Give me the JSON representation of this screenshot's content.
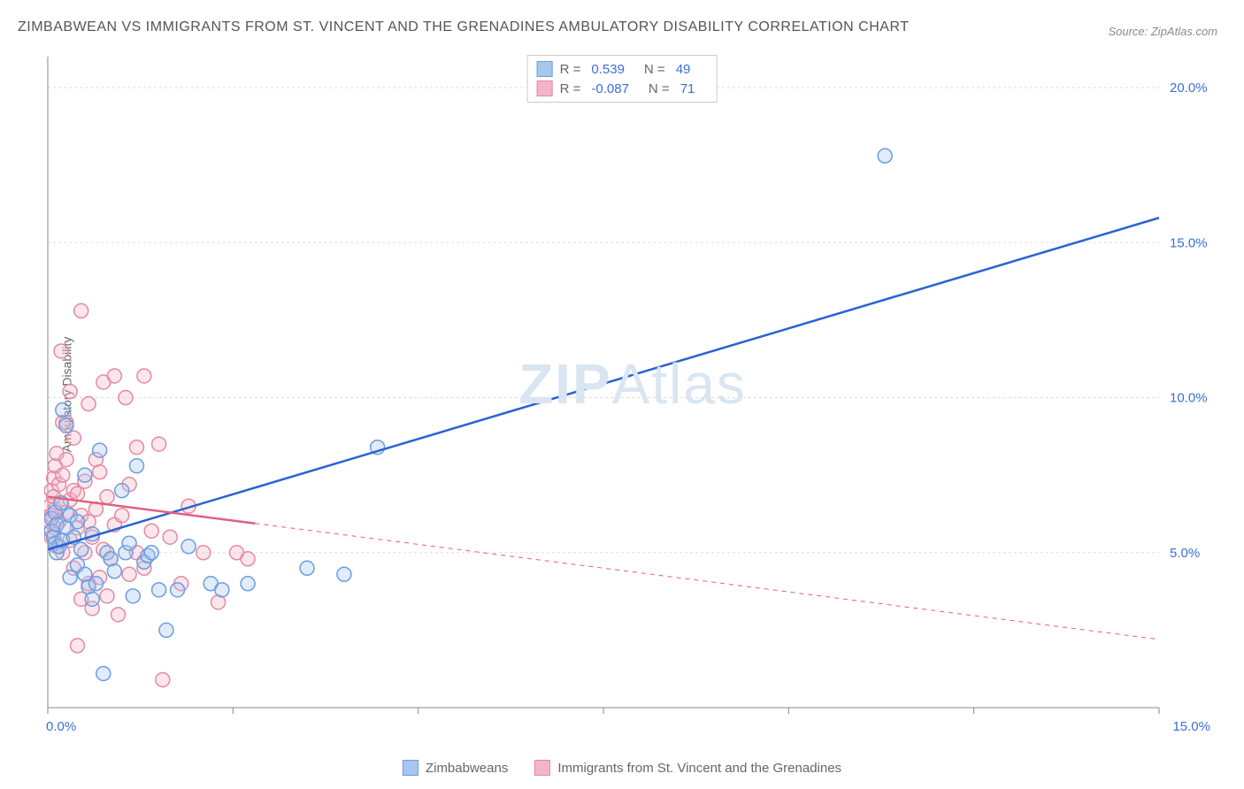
{
  "chart": {
    "type": "scatter",
    "title": "ZIMBABWEAN VS IMMIGRANTS FROM ST. VINCENT AND THE GRENADINES AMBULATORY DISABILITY CORRELATION CHART",
    "source": "Source: ZipAtlas.com",
    "watermark": "ZIPAtlas",
    "y_axis_label": "Ambulatory Disability",
    "background_color": "#ffffff",
    "grid_color": "#dddddd",
    "axis_color": "#888888",
    "tick_color": "#888888",
    "x_range": [
      0,
      15
    ],
    "y_range": [
      0,
      21
    ],
    "x_ticks": [
      0,
      2.5,
      5,
      7.5,
      10,
      12.5,
      15
    ],
    "x_tick_labels": {
      "0": "0.0%",
      "15": "15.0%"
    },
    "y_ticks": [
      5,
      10,
      15,
      20
    ],
    "y_tick_labels": {
      "5": "5.0%",
      "10": "10.0%",
      "15": "15.0%",
      "20": "20.0%"
    },
    "tick_label_color": "#3b6fd6",
    "tick_label_fontsize": 15,
    "marker_radius": 8,
    "marker_stroke_width": 1.5,
    "marker_fill_opacity": 0.35,
    "series": [
      {
        "name": "Zimbabweans",
        "color_stroke": "#6a9de0",
        "color_fill": "#a8c7ee",
        "regression": {
          "x1": 0,
          "y1": 5.1,
          "x2": 15,
          "y2": 15.8,
          "solid_until_x": 15,
          "stroke": "#2a62d4",
          "stroke_width": 2.5
        },
        "R": "0.539",
        "N": "49",
        "points": [
          [
            0.05,
            6.1
          ],
          [
            0.05,
            5.7
          ],
          [
            0.08,
            5.5
          ],
          [
            0.1,
            5.3
          ],
          [
            0.1,
            6.3
          ],
          [
            0.12,
            5.0
          ],
          [
            0.12,
            5.9
          ],
          [
            0.15,
            5.2
          ],
          [
            0.18,
            6.6
          ],
          [
            0.2,
            5.4
          ],
          [
            0.2,
            9.6
          ],
          [
            0.25,
            9.1
          ],
          [
            0.25,
            5.8
          ],
          [
            0.3,
            6.2
          ],
          [
            0.3,
            4.2
          ],
          [
            0.35,
            5.5
          ],
          [
            0.4,
            6.0
          ],
          [
            0.4,
            4.6
          ],
          [
            0.45,
            5.1
          ],
          [
            0.5,
            4.3
          ],
          [
            0.5,
            7.5
          ],
          [
            0.55,
            3.9
          ],
          [
            0.6,
            5.6
          ],
          [
            0.65,
            4.0
          ],
          [
            0.7,
            8.3
          ],
          [
            0.75,
            1.1
          ],
          [
            0.8,
            5.0
          ],
          [
            0.85,
            4.8
          ],
          [
            0.9,
            4.4
          ],
          [
            1.0,
            7.0
          ],
          [
            1.05,
            5.0
          ],
          [
            1.1,
            5.3
          ],
          [
            1.15,
            3.6
          ],
          [
            1.2,
            7.8
          ],
          [
            1.3,
            4.7
          ],
          [
            1.35,
            4.9
          ],
          [
            1.4,
            5.0
          ],
          [
            1.5,
            3.8
          ],
          [
            1.6,
            2.5
          ],
          [
            1.75,
            3.8
          ],
          [
            1.9,
            5.2
          ],
          [
            2.2,
            4.0
          ],
          [
            2.35,
            3.8
          ],
          [
            2.7,
            4.0
          ],
          [
            3.5,
            4.5
          ],
          [
            4.0,
            4.3
          ],
          [
            4.45,
            8.4
          ],
          [
            11.3,
            17.8
          ],
          [
            0.6,
            3.5
          ]
        ]
      },
      {
        "name": "Immigrants from St. Vincent and the Grenadines",
        "color_stroke": "#e589a4",
        "color_fill": "#f2b6c6",
        "regression": {
          "x1": 0,
          "y1": 6.8,
          "x2": 15,
          "y2": 2.2,
          "solid_until_x": 2.8,
          "stroke": "#e1607f",
          "stroke_width": 2.5
        },
        "R": "-0.087",
        "N": "71",
        "points": [
          [
            0.03,
            6.0
          ],
          [
            0.03,
            6.5
          ],
          [
            0.05,
            7.0
          ],
          [
            0.05,
            6.2
          ],
          [
            0.05,
            5.5
          ],
          [
            0.08,
            6.8
          ],
          [
            0.08,
            7.4
          ],
          [
            0.1,
            5.8
          ],
          [
            0.1,
            6.4
          ],
          [
            0.1,
            7.8
          ],
          [
            0.12,
            8.2
          ],
          [
            0.12,
            5.2
          ],
          [
            0.15,
            6.0
          ],
          [
            0.15,
            7.2
          ],
          [
            0.18,
            6.6
          ],
          [
            0.18,
            11.5
          ],
          [
            0.2,
            5.0
          ],
          [
            0.2,
            7.5
          ],
          [
            0.2,
            9.2
          ],
          [
            0.25,
            6.3
          ],
          [
            0.25,
            8.0
          ],
          [
            0.25,
            9.2
          ],
          [
            0.3,
            5.4
          ],
          [
            0.3,
            6.7
          ],
          [
            0.3,
            10.2
          ],
          [
            0.35,
            4.5
          ],
          [
            0.35,
            7.0
          ],
          [
            0.35,
            8.7
          ],
          [
            0.4,
            2.0
          ],
          [
            0.4,
            5.8
          ],
          [
            0.4,
            6.9
          ],
          [
            0.45,
            3.5
          ],
          [
            0.45,
            6.2
          ],
          [
            0.45,
            12.8
          ],
          [
            0.5,
            5.0
          ],
          [
            0.5,
            7.3
          ],
          [
            0.55,
            4.0
          ],
          [
            0.55,
            6.0
          ],
          [
            0.55,
            9.8
          ],
          [
            0.6,
            3.2
          ],
          [
            0.6,
            5.5
          ],
          [
            0.65,
            6.4
          ],
          [
            0.65,
            8.0
          ],
          [
            0.7,
            4.2
          ],
          [
            0.7,
            7.6
          ],
          [
            0.75,
            5.1
          ],
          [
            0.75,
            10.5
          ],
          [
            0.8,
            3.6
          ],
          [
            0.8,
            6.8
          ],
          [
            0.85,
            4.8
          ],
          [
            0.9,
            5.9
          ],
          [
            0.9,
            10.7
          ],
          [
            0.95,
            3.0
          ],
          [
            1.0,
            6.2
          ],
          [
            1.05,
            10.0
          ],
          [
            1.1,
            4.3
          ],
          [
            1.1,
            7.2
          ],
          [
            1.2,
            5.0
          ],
          [
            1.2,
            8.4
          ],
          [
            1.3,
            4.5
          ],
          [
            1.3,
            10.7
          ],
          [
            1.4,
            5.7
          ],
          [
            1.5,
            8.5
          ],
          [
            1.55,
            0.9
          ],
          [
            1.65,
            5.5
          ],
          [
            1.8,
            4.0
          ],
          [
            1.9,
            6.5
          ],
          [
            2.1,
            5.0
          ],
          [
            2.3,
            3.4
          ],
          [
            2.55,
            5.0
          ],
          [
            2.7,
            4.8
          ]
        ]
      }
    ],
    "legend_top": [
      {
        "swatch_fill": "#a8c7ee",
        "swatch_stroke": "#6a9de0",
        "R_label": "R =",
        "R": "0.539",
        "N_label": "N =",
        "N": "49"
      },
      {
        "swatch_fill": "#f2b6c6",
        "swatch_stroke": "#e589a4",
        "R_label": "R =",
        "R": "-0.087",
        "N_label": "N =",
        "N": "71"
      }
    ],
    "legend_bottom": [
      {
        "swatch_fill": "#a8c7ee",
        "swatch_stroke": "#6a9de0",
        "label": "Zimbabweans"
      },
      {
        "swatch_fill": "#f2b6c6",
        "swatch_stroke": "#e589a4",
        "label": "Immigrants from St. Vincent and the Grenadines"
      }
    ]
  }
}
